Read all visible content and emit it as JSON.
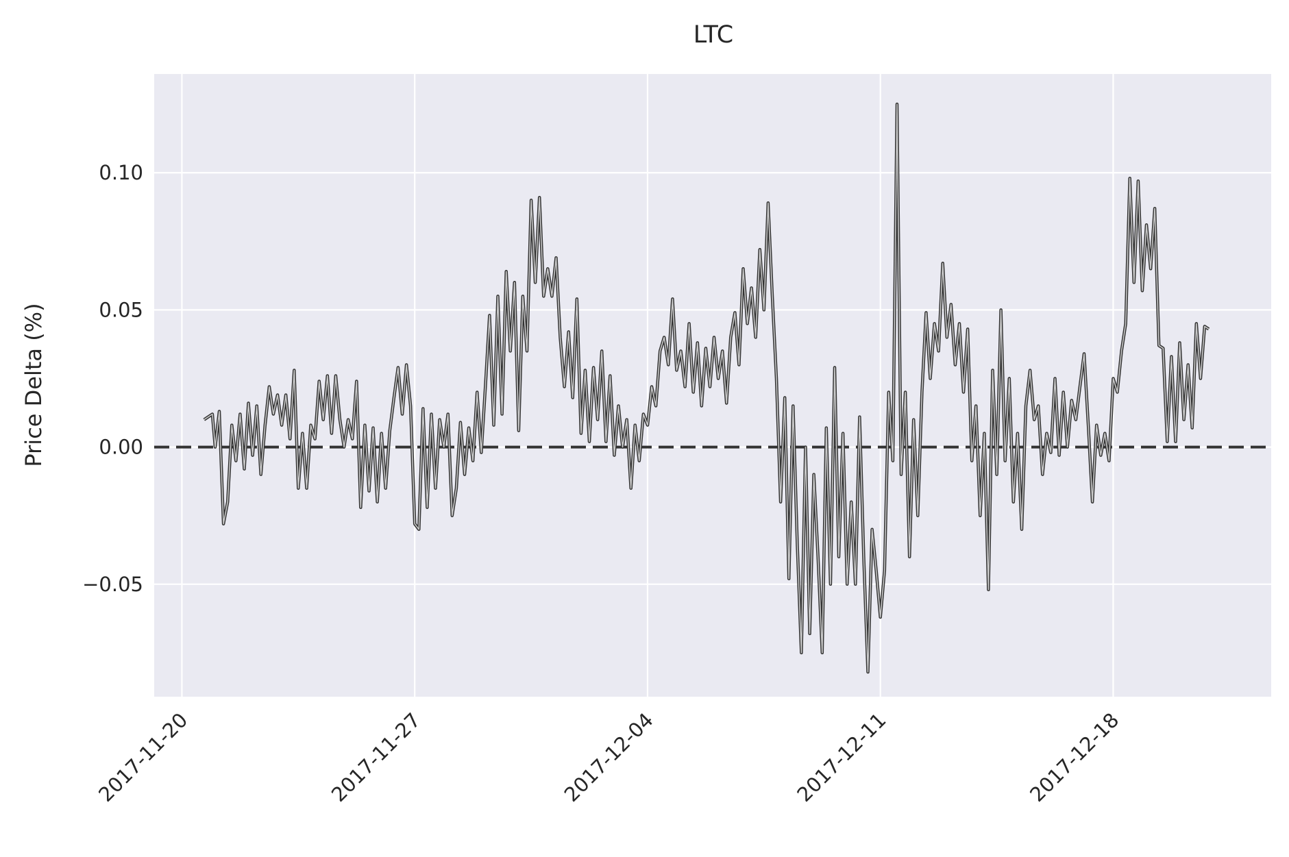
{
  "chart_data": {
    "type": "line",
    "title": "LTC",
    "xlabel": "",
    "ylabel": "Price Delta (%)",
    "x_ticks": [
      "2017-11-20",
      "2017-11-27",
      "2017-12-04",
      "2017-12-11",
      "2017-12-18"
    ],
    "y_ticks": [
      -0.05,
      0.0,
      0.05,
      0.1
    ],
    "y_tick_labels": [
      "−0.05",
      "0.00",
      "0.05",
      "0.10"
    ],
    "xlim": [
      "2017-11-19T04:00",
      "2017-12-22T18:00"
    ],
    "ylim": [
      -0.091,
      0.136
    ],
    "grid": true,
    "reference_line": {
      "y": 0.0,
      "style": "dashed",
      "color": "#333333"
    },
    "series": [
      {
        "line_color": "#333333",
        "fill_line_color": "#c8c8c8",
        "points": [
          [
            "2017-11-20T16:00",
            0.01
          ],
          [
            "2017-11-20T22:00",
            0.012
          ],
          [
            "2017-11-21T00:00",
            0.0
          ],
          [
            "2017-11-21T03:00",
            0.013
          ],
          [
            "2017-11-21T06:00",
            -0.028
          ],
          [
            "2017-11-21T09:00",
            -0.02
          ],
          [
            "2017-11-21T12:00",
            0.008
          ],
          [
            "2017-11-21T15:00",
            -0.005
          ],
          [
            "2017-11-21T18:00",
            0.012
          ],
          [
            "2017-11-21T21:00",
            -0.008
          ],
          [
            "2017-11-22T00:00",
            0.016
          ],
          [
            "2017-11-22T03:00",
            -0.003
          ],
          [
            "2017-11-22T06:00",
            0.015
          ],
          [
            "2017-11-22T09:00",
            -0.01
          ],
          [
            "2017-11-22T12:00",
            0.008
          ],
          [
            "2017-11-22T15:00",
            0.022
          ],
          [
            "2017-11-22T18:00",
            0.012
          ],
          [
            "2017-11-22T21:00",
            0.019
          ],
          [
            "2017-11-23T00:00",
            0.008
          ],
          [
            "2017-11-23T03:00",
            0.019
          ],
          [
            "2017-11-23T06:00",
            0.003
          ],
          [
            "2017-11-23T09:00",
            0.028
          ],
          [
            "2017-11-23T12:00",
            -0.015
          ],
          [
            "2017-11-23T15:00",
            0.005
          ],
          [
            "2017-11-23T18:00",
            -0.015
          ],
          [
            "2017-11-23T21:00",
            0.008
          ],
          [
            "2017-11-24T00:00",
            0.003
          ],
          [
            "2017-11-24T03:00",
            0.024
          ],
          [
            "2017-11-24T06:00",
            0.01
          ],
          [
            "2017-11-24T09:00",
            0.026
          ],
          [
            "2017-11-24T12:00",
            0.005
          ],
          [
            "2017-11-24T15:00",
            0.026
          ],
          [
            "2017-11-24T18:00",
            0.01
          ],
          [
            "2017-11-24T21:00",
            0.0
          ],
          [
            "2017-11-25T00:00",
            0.01
          ],
          [
            "2017-11-25T03:00",
            0.003
          ],
          [
            "2017-11-25T06:00",
            0.024
          ],
          [
            "2017-11-25T09:00",
            -0.022
          ],
          [
            "2017-11-25T12:00",
            0.008
          ],
          [
            "2017-11-25T15:00",
            -0.016
          ],
          [
            "2017-11-25T18:00",
            0.007
          ],
          [
            "2017-11-25T21:00",
            -0.02
          ],
          [
            "2017-11-26T00:00",
            0.005
          ],
          [
            "2017-11-26T03:00",
            -0.015
          ],
          [
            "2017-11-26T06:00",
            0.006
          ],
          [
            "2017-11-26T09:00",
            0.018
          ],
          [
            "2017-11-26T12:00",
            0.029
          ],
          [
            "2017-11-26T15:00",
            0.012
          ],
          [
            "2017-11-26T18:00",
            0.03
          ],
          [
            "2017-11-26T21:00",
            0.015
          ],
          [
            "2017-11-27T00:00",
            -0.028
          ],
          [
            "2017-11-27T03:00",
            -0.03
          ],
          [
            "2017-11-27T06:00",
            0.014
          ],
          [
            "2017-11-27T09:00",
            -0.022
          ],
          [
            "2017-11-27T12:00",
            0.012
          ],
          [
            "2017-11-27T15:00",
            -0.015
          ],
          [
            "2017-11-27T18:00",
            0.01
          ],
          [
            "2017-11-27T21:00",
            0.0
          ],
          [
            "2017-11-28T00:00",
            0.012
          ],
          [
            "2017-11-28T03:00",
            -0.025
          ],
          [
            "2017-11-28T06:00",
            -0.015
          ],
          [
            "2017-11-28T09:00",
            0.009
          ],
          [
            "2017-11-28T12:00",
            -0.01
          ],
          [
            "2017-11-28T15:00",
            0.007
          ],
          [
            "2017-11-28T18:00",
            -0.005
          ],
          [
            "2017-11-28T21:00",
            0.02
          ],
          [
            "2017-11-29T00:00",
            -0.002
          ],
          [
            "2017-11-29T03:00",
            0.022
          ],
          [
            "2017-11-29T06:00",
            0.048
          ],
          [
            "2017-11-29T09:00",
            0.008
          ],
          [
            "2017-11-29T12:00",
            0.055
          ],
          [
            "2017-11-29T15:00",
            0.012
          ],
          [
            "2017-11-29T18:00",
            0.064
          ],
          [
            "2017-11-29T21:00",
            0.035
          ],
          [
            "2017-11-30T00:00",
            0.06
          ],
          [
            "2017-11-30T03:00",
            0.006
          ],
          [
            "2017-11-30T06:00",
            0.055
          ],
          [
            "2017-11-30T09:00",
            0.035
          ],
          [
            "2017-11-30T12:00",
            0.09
          ],
          [
            "2017-11-30T15:00",
            0.06
          ],
          [
            "2017-11-30T18:00",
            0.091
          ],
          [
            "2017-11-30T21:00",
            0.055
          ],
          [
            "2017-12-01T00:00",
            0.065
          ],
          [
            "2017-12-01T03:00",
            0.055
          ],
          [
            "2017-12-01T06:00",
            0.069
          ],
          [
            "2017-12-01T09:00",
            0.04
          ],
          [
            "2017-12-01T12:00",
            0.022
          ],
          [
            "2017-12-01T15:00",
            0.042
          ],
          [
            "2017-12-01T18:00",
            0.018
          ],
          [
            "2017-12-01T21:00",
            0.054
          ],
          [
            "2017-12-02T00:00",
            0.005
          ],
          [
            "2017-12-02T03:00",
            0.028
          ],
          [
            "2017-12-02T06:00",
            0.002
          ],
          [
            "2017-12-02T09:00",
            0.029
          ],
          [
            "2017-12-02T12:00",
            0.01
          ],
          [
            "2017-12-02T15:00",
            0.035
          ],
          [
            "2017-12-02T18:00",
            0.002
          ],
          [
            "2017-12-02T21:00",
            0.026
          ],
          [
            "2017-12-03T00:00",
            -0.003
          ],
          [
            "2017-12-03T03:00",
            0.015
          ],
          [
            "2017-12-03T06:00",
            0.0
          ],
          [
            "2017-12-03T09:00",
            0.01
          ],
          [
            "2017-12-03T12:00",
            -0.015
          ],
          [
            "2017-12-03T15:00",
            0.008
          ],
          [
            "2017-12-03T18:00",
            -0.005
          ],
          [
            "2017-12-03T21:00",
            0.012
          ],
          [
            "2017-12-04T00:00",
            0.008
          ],
          [
            "2017-12-04T03:00",
            0.022
          ],
          [
            "2017-12-04T06:00",
            0.015
          ],
          [
            "2017-12-04T09:00",
            0.035
          ],
          [
            "2017-12-04T12:00",
            0.04
          ],
          [
            "2017-12-04T15:00",
            0.03
          ],
          [
            "2017-12-04T18:00",
            0.054
          ],
          [
            "2017-12-04T21:00",
            0.028
          ],
          [
            "2017-12-05T00:00",
            0.035
          ],
          [
            "2017-12-05T03:00",
            0.022
          ],
          [
            "2017-12-05T06:00",
            0.045
          ],
          [
            "2017-12-05T09:00",
            0.02
          ],
          [
            "2017-12-05T12:00",
            0.038
          ],
          [
            "2017-12-05T15:00",
            0.015
          ],
          [
            "2017-12-05T18:00",
            0.036
          ],
          [
            "2017-12-05T21:00",
            0.022
          ],
          [
            "2017-12-06T00:00",
            0.04
          ],
          [
            "2017-12-06T03:00",
            0.025
          ],
          [
            "2017-12-06T06:00",
            0.035
          ],
          [
            "2017-12-06T09:00",
            0.016
          ],
          [
            "2017-12-06T12:00",
            0.04
          ],
          [
            "2017-12-06T15:00",
            0.049
          ],
          [
            "2017-12-06T18:00",
            0.03
          ],
          [
            "2017-12-06T21:00",
            0.065
          ],
          [
            "2017-12-07T00:00",
            0.045
          ],
          [
            "2017-12-07T03:00",
            0.058
          ],
          [
            "2017-12-07T06:00",
            0.04
          ],
          [
            "2017-12-07T09:00",
            0.072
          ],
          [
            "2017-12-07T12:00",
            0.05
          ],
          [
            "2017-12-07T15:00",
            0.089
          ],
          [
            "2017-12-07T18:00",
            0.055
          ],
          [
            "2017-12-07T21:00",
            0.025
          ],
          [
            "2017-12-08T00:00",
            -0.02
          ],
          [
            "2017-12-08T03:00",
            0.018
          ],
          [
            "2017-12-08T06:00",
            -0.048
          ],
          [
            "2017-12-08T09:00",
            0.015
          ],
          [
            "2017-12-08T12:00",
            -0.035
          ],
          [
            "2017-12-08T15:00",
            -0.075
          ],
          [
            "2017-12-08T18:00",
            0.0
          ],
          [
            "2017-12-08T21:00",
            -0.068
          ],
          [
            "2017-12-09T00:00",
            -0.01
          ],
          [
            "2017-12-09T03:00",
            -0.04
          ],
          [
            "2017-12-09T06:00",
            -0.075
          ],
          [
            "2017-12-09T09:00",
            0.007
          ],
          [
            "2017-12-09T12:00",
            -0.05
          ],
          [
            "2017-12-09T15:00",
            0.029
          ],
          [
            "2017-12-09T18:00",
            -0.04
          ],
          [
            "2017-12-09T21:00",
            0.005
          ],
          [
            "2017-12-10T00:00",
            -0.05
          ],
          [
            "2017-12-10T03:00",
            -0.02
          ],
          [
            "2017-12-10T06:00",
            -0.05
          ],
          [
            "2017-12-10T09:00",
            0.011
          ],
          [
            "2017-12-10T12:00",
            -0.04
          ],
          [
            "2017-12-10T15:00",
            -0.082
          ],
          [
            "2017-12-10T18:00",
            -0.03
          ],
          [
            "2017-12-10T21:00",
            -0.045
          ],
          [
            "2017-12-11T00:00",
            -0.062
          ],
          [
            "2017-12-11T03:00",
            -0.045
          ],
          [
            "2017-12-11T06:00",
            0.02
          ],
          [
            "2017-12-11T09:00",
            -0.005
          ],
          [
            "2017-12-11T12:00",
            0.125
          ],
          [
            "2017-12-11T15:00",
            -0.01
          ],
          [
            "2017-12-11T18:00",
            0.02
          ],
          [
            "2017-12-11T21:00",
            -0.04
          ],
          [
            "2017-12-12T00:00",
            0.01
          ],
          [
            "2017-12-12T03:00",
            -0.025
          ],
          [
            "2017-12-12T06:00",
            0.02
          ],
          [
            "2017-12-12T09:00",
            0.049
          ],
          [
            "2017-12-12T12:00",
            0.025
          ],
          [
            "2017-12-12T15:00",
            0.045
          ],
          [
            "2017-12-12T18:00",
            0.035
          ],
          [
            "2017-12-12T21:00",
            0.067
          ],
          [
            "2017-12-13T00:00",
            0.04
          ],
          [
            "2017-12-13T03:00",
            0.052
          ],
          [
            "2017-12-13T06:00",
            0.03
          ],
          [
            "2017-12-13T09:00",
            0.045
          ],
          [
            "2017-12-13T12:00",
            0.02
          ],
          [
            "2017-12-13T15:00",
            0.043
          ],
          [
            "2017-12-13T18:00",
            -0.005
          ],
          [
            "2017-12-13T21:00",
            0.015
          ],
          [
            "2017-12-14T00:00",
            -0.025
          ],
          [
            "2017-12-14T03:00",
            0.005
          ],
          [
            "2017-12-14T06:00",
            -0.052
          ],
          [
            "2017-12-14T09:00",
            0.028
          ],
          [
            "2017-12-14T12:00",
            -0.01
          ],
          [
            "2017-12-14T15:00",
            0.05
          ],
          [
            "2017-12-14T18:00",
            -0.005
          ],
          [
            "2017-12-14T21:00",
            0.025
          ],
          [
            "2017-12-15T00:00",
            -0.02
          ],
          [
            "2017-12-15T03:00",
            0.005
          ],
          [
            "2017-12-15T06:00",
            -0.03
          ],
          [
            "2017-12-15T09:00",
            0.015
          ],
          [
            "2017-12-15T12:00",
            0.028
          ],
          [
            "2017-12-15T15:00",
            0.01
          ],
          [
            "2017-12-15T18:00",
            0.015
          ],
          [
            "2017-12-15T21:00",
            -0.01
          ],
          [
            "2017-12-16T00:00",
            0.005
          ],
          [
            "2017-12-16T03:00",
            -0.002
          ],
          [
            "2017-12-16T06:00",
            0.025
          ],
          [
            "2017-12-16T09:00",
            -0.003
          ],
          [
            "2017-12-16T12:00",
            0.02
          ],
          [
            "2017-12-16T15:00",
            0.0
          ],
          [
            "2017-12-16T18:00",
            0.017
          ],
          [
            "2017-12-16T21:00",
            0.01
          ],
          [
            "2017-12-17T00:00",
            0.022
          ],
          [
            "2017-12-17T03:00",
            0.034
          ],
          [
            "2017-12-17T06:00",
            0.008
          ],
          [
            "2017-12-17T09:00",
            -0.02
          ],
          [
            "2017-12-17T12:00",
            0.008
          ],
          [
            "2017-12-17T15:00",
            -0.003
          ],
          [
            "2017-12-17T18:00",
            0.005
          ],
          [
            "2017-12-17T21:00",
            -0.005
          ],
          [
            "2017-12-18T00:00",
            0.025
          ],
          [
            "2017-12-18T03:00",
            0.02
          ],
          [
            "2017-12-18T06:00",
            0.035
          ],
          [
            "2017-12-18T09:00",
            0.045
          ],
          [
            "2017-12-18T12:00",
            0.098
          ],
          [
            "2017-12-18T15:00",
            0.06
          ],
          [
            "2017-12-18T18:00",
            0.097
          ],
          [
            "2017-12-18T21:00",
            0.057
          ],
          [
            "2017-12-19T00:00",
            0.081
          ],
          [
            "2017-12-19T03:00",
            0.065
          ],
          [
            "2017-12-19T06:00",
            0.087
          ],
          [
            "2017-12-19T09:00",
            0.037
          ],
          [
            "2017-12-19T12:00",
            0.036
          ],
          [
            "2017-12-19T15:00",
            0.002
          ],
          [
            "2017-12-19T18:00",
            0.033
          ],
          [
            "2017-12-19T21:00",
            0.002
          ],
          [
            "2017-12-20T00:00",
            0.038
          ],
          [
            "2017-12-20T03:00",
            0.01
          ],
          [
            "2017-12-20T06:00",
            0.03
          ],
          [
            "2017-12-20T09:00",
            0.007
          ],
          [
            "2017-12-20T12:00",
            0.045
          ],
          [
            "2017-12-20T15:00",
            0.025
          ],
          [
            "2017-12-20T18:00",
            0.044
          ],
          [
            "2017-12-20T21:00",
            0.043
          ]
        ]
      }
    ]
  }
}
